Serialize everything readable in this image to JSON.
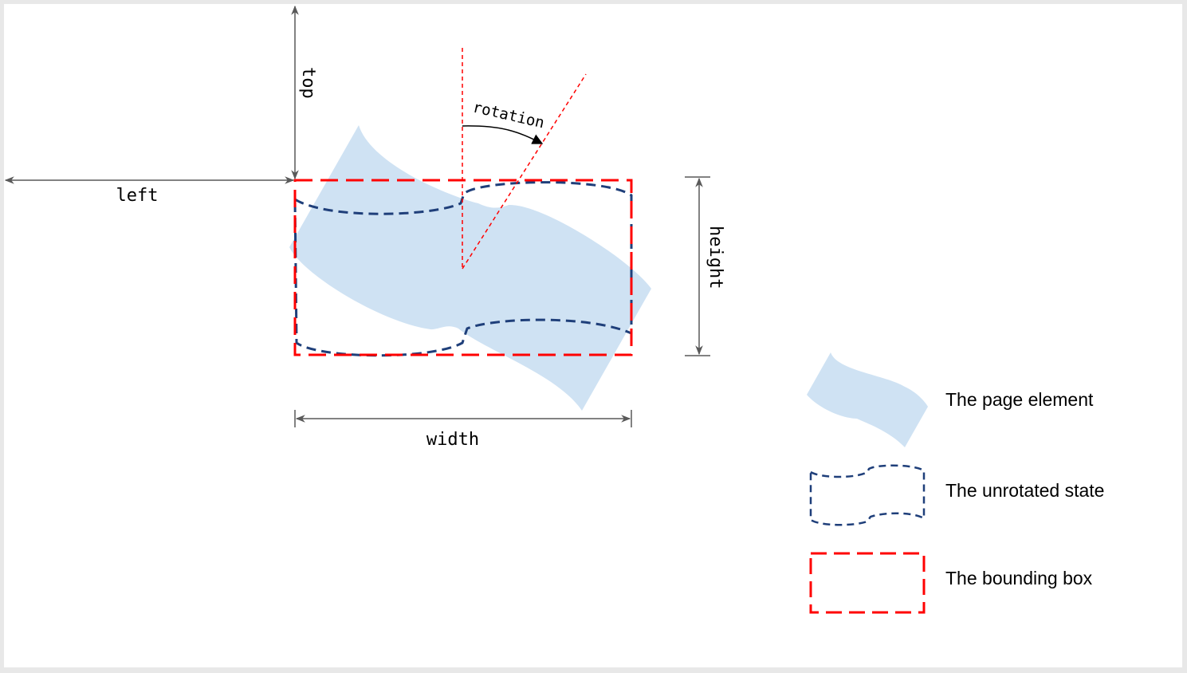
{
  "labels": {
    "top": "top",
    "left": "left",
    "width": "width",
    "height": "height",
    "rotation": "rotation"
  },
  "legend": [
    {
      "label": "The page element"
    },
    {
      "label": "The unrotated state"
    },
    {
      "label": "The bounding box"
    }
  ],
  "colors": {
    "element_fill": "#cfe2f3",
    "unrotated_stroke": "#1f3f7a",
    "bounding_box_stroke": "#ff0000",
    "dimension_line": "#595959"
  }
}
